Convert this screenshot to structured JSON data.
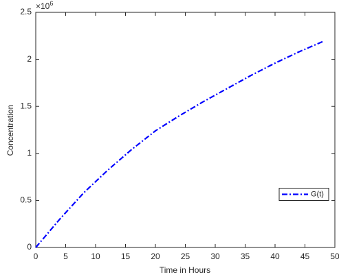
{
  "chart_data": {
    "type": "line",
    "x_label": "Time in Hours",
    "y_label": "Concentration",
    "y_multiplier": {
      "base": "×10",
      "exponent": "6"
    },
    "x": [
      0,
      4,
      8,
      12,
      16,
      20,
      24,
      28,
      32,
      36,
      40,
      44,
      48
    ],
    "series": [
      {
        "name": "G(t)",
        "color": "#0000ff",
        "values": [
          0,
          0.3,
          0.58,
          0.82,
          1.04,
          1.24,
          1.4,
          1.55,
          1.69,
          1.83,
          1.96,
          2.08,
          2.19
        ]
      }
    ],
    "xlim": [
      0,
      50
    ],
    "xticks": [
      0,
      5,
      10,
      15,
      20,
      25,
      30,
      35,
      40,
      45,
      50
    ],
    "ylim": [
      0,
      2.5
    ],
    "yticks": [
      0,
      0.5,
      1,
      1.5,
      2,
      2.5
    ],
    "grid": false,
    "legend": "east"
  }
}
